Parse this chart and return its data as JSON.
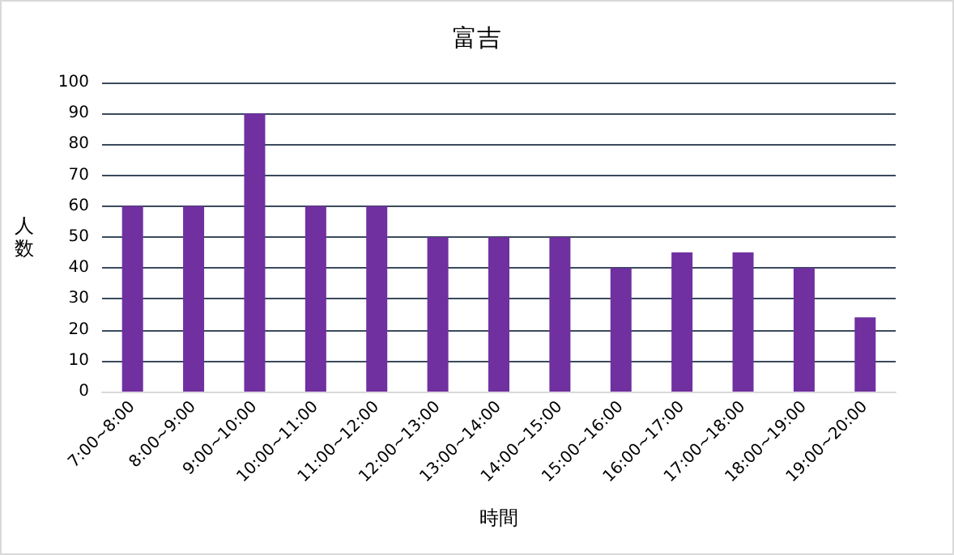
{
  "chart_data": {
    "type": "bar",
    "title": "富吉",
    "xlabel": "時間",
    "ylabel": "人数",
    "categories": [
      "7:00~8:00",
      "8:00~9:00",
      "9:00~10:00",
      "10:00~11:00",
      "11:00~12:00",
      "12:00~13:00",
      "13:00~14:00",
      "14:00~15:00",
      "15:00~16:00",
      "16:00~17:00",
      "17:00~18:00",
      "18:00~19:00",
      "19:00~20:00"
    ],
    "values": [
      60,
      60,
      90,
      60,
      60,
      50,
      50,
      50,
      40,
      45,
      45,
      40,
      24
    ],
    "color": "#7030a0",
    "ylim": [
      0,
      100
    ],
    "yticks": [
      0,
      10,
      20,
      30,
      40,
      50,
      60,
      70,
      80,
      90,
      100
    ],
    "grid": "y"
  }
}
